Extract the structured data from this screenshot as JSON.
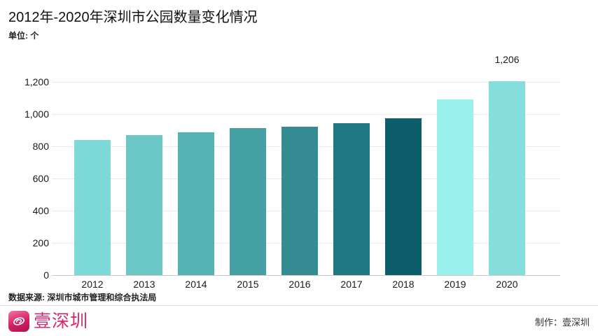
{
  "header": {
    "title": "2012年-2020年深圳市公园数量变化情况",
    "unit_label": "单位: 个"
  },
  "chart_data": {
    "type": "bar",
    "title": "2012年-2020年深圳市公园数量变化情况",
    "ylabel": "单位: 个",
    "xlabel": "",
    "categories": [
      "2012",
      "2013",
      "2014",
      "2015",
      "2016",
      "2017",
      "2018",
      "2019",
      "2020"
    ],
    "values": [
      841,
      869,
      889,
      911,
      921,
      942,
      973,
      1090,
      1206
    ],
    "bar_colors": [
      "#7edad8",
      "#6bc7c5",
      "#56b3b4",
      "#45a0a3",
      "#348b91",
      "#1f7881",
      "#0c5f6a",
      "#99f0ec",
      "#85dedb"
    ],
    "ylim": [
      0,
      1200
    ],
    "yticks": [
      0,
      200,
      400,
      600,
      800,
      1000,
      1200
    ],
    "ytick_labels": [
      "0",
      "200",
      "400",
      "600",
      "800",
      "1,000",
      "1,200"
    ],
    "grid": "horizontal",
    "legend": "none",
    "annotations": [
      {
        "category": "2020",
        "text": "1,206"
      }
    ]
  },
  "source_label": "数据来源: 深圳市城市管理和综合执法局",
  "footer": {
    "brand": "壹深圳",
    "credit": "制作：壹深圳"
  },
  "colors": {
    "accent_pink": "#d62a72",
    "gridline": "#e9e9e9",
    "baseline": "#c9c9c9",
    "text_dark": "#1a1a1a"
  }
}
